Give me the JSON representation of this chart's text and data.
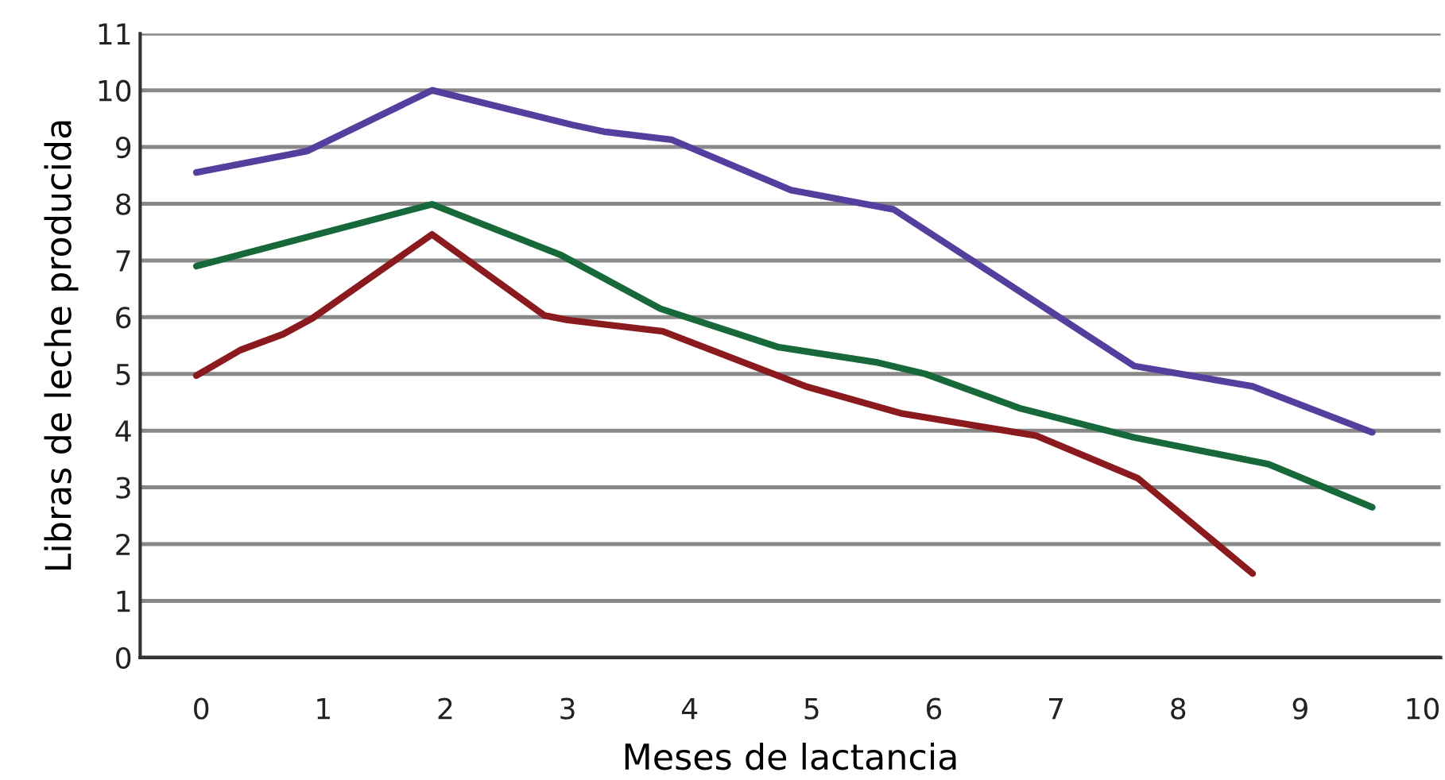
{
  "chart_data": {
    "type": "line",
    "xlabel": "Meses de lactancia",
    "ylabel": "Libras de leche producida",
    "xlim": [
      -0.5,
      10.15
    ],
    "xticks": [
      0,
      1,
      2,
      3,
      4,
      5,
      6,
      7,
      8,
      9,
      10
    ],
    "ylim": [
      0,
      11
    ],
    "yticks": [
      0,
      1,
      2,
      3,
      4,
      5,
      6,
      7,
      8,
      9,
      10,
      11
    ],
    "grid": "y",
    "marker": "none",
    "line_style": "solid",
    "series": [
      {
        "color": "#553f9e",
        "x": [
          -0.04,
          0.87,
          1.89,
          3.04,
          3.3,
          3.85,
          4.83,
          5.67,
          7.64,
          8.61,
          9.59
        ],
        "values": [
          8.55,
          8.93,
          10.0,
          9.39,
          9.27,
          9.13,
          8.24,
          7.9,
          5.14,
          4.78,
          3.97
        ]
      },
      {
        "color": "#17693a",
        "x": [
          -0.04,
          1.89,
          2.95,
          3.76,
          4.73,
          5.54,
          5.93,
          6.71,
          7.64,
          8.74,
          9.59
        ],
        "values": [
          6.9,
          7.99,
          7.09,
          6.15,
          5.47,
          5.2,
          5.0,
          4.39,
          3.88,
          3.41,
          2.65
        ]
      },
      {
        "color": "#8b1a1f",
        "x": [
          -0.04,
          0.32,
          0.67,
          0.91,
          1.89,
          2.81,
          3.0,
          3.78,
          4.95,
          5.74,
          6.28,
          6.84,
          7.67,
          8.61
        ],
        "values": [
          4.97,
          5.42,
          5.7,
          5.98,
          7.46,
          6.03,
          5.95,
          5.75,
          4.78,
          4.3,
          4.11,
          3.91,
          3.16,
          1.48
        ]
      }
    ]
  }
}
